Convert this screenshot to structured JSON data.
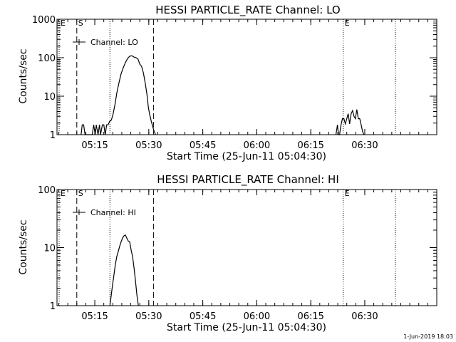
{
  "chart_data": [
    {
      "type": "line",
      "title": "HESSI PARTICLE_RATE Channel: LO",
      "ylabel": "Counts/sec",
      "xlabel": "Start Time (25-Jun-11 05:04:30)",
      "yscale": "log",
      "ylim": [
        1,
        1000
      ],
      "yticks": [
        1,
        10,
        100,
        1000
      ],
      "ytick_labels": [
        "1",
        "10",
        "100",
        "1000"
      ],
      "xlim_min": [
        0,
        105.5
      ],
      "xtick_labels": [
        "05:15",
        "05:30",
        "05:45",
        "06:00",
        "06:15",
        "06:30"
      ],
      "xtick_min": [
        10.5,
        25.5,
        40.5,
        55.5,
        70.5,
        85.5
      ],
      "legend": "Channel: LO",
      "markers": [
        {
          "label": "E",
          "x_min": 0.6,
          "style": "dotted"
        },
        {
          "label": "S",
          "x_min": 5.5,
          "style": "dashed"
        },
        {
          "label": "",
          "x_min": 14.7,
          "style": "dotted"
        },
        {
          "label": "",
          "x_min": 26.8,
          "style": "dashed"
        },
        {
          "label": "E",
          "x_min": 79.5,
          "style": "dotted"
        },
        {
          "label": "",
          "x_min": 94.0,
          "style": "dotted"
        }
      ],
      "series": [
        {
          "name": "Channel: LO",
          "x_min": [
            6.7,
            7.0,
            7.4,
            7.8,
            8.1,
            9.8,
            10.2,
            10.6,
            10.9,
            11.4,
            11.8,
            12.1,
            12.6,
            13.0,
            13.4,
            13.8,
            14.2,
            14.6,
            15.1,
            15.6,
            16.1,
            16.6,
            17.2,
            17.8,
            18.4,
            19.0,
            19.6,
            20.2,
            20.8,
            21.4,
            22.0,
            22.5,
            23.0,
            23.5,
            24.0,
            24.5,
            25.0,
            25.4,
            25.8,
            26.2,
            26.6,
            27.0,
            27.4
          ],
          "y": [
            1,
            1.8,
            1.8,
            1,
            1,
            1,
            1.8,
            1,
            1.8,
            1,
            1.8,
            1,
            1.8,
            1.8,
            1,
            1.8,
            1.8,
            2.2,
            2.4,
            3.5,
            6,
            12,
            22,
            38,
            55,
            75,
            95,
            110,
            112,
            104,
            100,
            92,
            68,
            60,
            40,
            22,
            11,
            5,
            3.2,
            2.2,
            1.6,
            1.2,
            1
          ]
        },
        {
          "name": "Channel: LO",
          "x_min": [
            77.5,
            77.9,
            78.2,
            78.5,
            78.9,
            79.3,
            79.7,
            80.1,
            80.5,
            80.9,
            81.3,
            81.7,
            82.1,
            82.5,
            82.9,
            83.3,
            83.7,
            84.1,
            84.5,
            84.9,
            85.3
          ],
          "y": [
            1,
            1.8,
            1,
            1,
            1.8,
            2.6,
            2.6,
            1.9,
            2.6,
            3.5,
            1.9,
            3.5,
            4.2,
            3.0,
            2.6,
            4.5,
            2.6,
            2.6,
            1.8,
            1.2,
            1
          ]
        }
      ]
    },
    {
      "type": "line",
      "title": "HESSI PARTICLE_RATE Channel: HI",
      "ylabel": "Counts/sec",
      "xlabel": "Start Time (25-Jun-11 05:04:30)",
      "yscale": "log",
      "ylim": [
        1,
        100
      ],
      "yticks": [
        1,
        10,
        100
      ],
      "ytick_labels": [
        "1",
        "10",
        "100"
      ],
      "xlim_min": [
        0,
        105.5
      ],
      "xtick_labels": [
        "05:15",
        "05:30",
        "05:45",
        "06:00",
        "06:15",
        "06:30"
      ],
      "xtick_min": [
        10.5,
        25.5,
        40.5,
        55.5,
        70.5,
        85.5
      ],
      "legend": "Channel: HI",
      "markers": [
        {
          "label": "E",
          "x_min": 0.6,
          "style": "dotted"
        },
        {
          "label": "S",
          "x_min": 5.5,
          "style": "dashed"
        },
        {
          "label": "",
          "x_min": 14.7,
          "style": "dotted"
        },
        {
          "label": "",
          "x_min": 26.8,
          "style": "dashed"
        },
        {
          "label": "E",
          "x_min": 79.5,
          "style": "dotted"
        },
        {
          "label": "",
          "x_min": 94.0,
          "style": "dotted"
        }
      ],
      "series": [
        {
          "name": "Channel: HI",
          "x_min": [
            14.7,
            15.0,
            15.4,
            15.8,
            16.2,
            16.6,
            17.0,
            17.4,
            17.8,
            18.2,
            18.6,
            19.0,
            19.4,
            19.8,
            20.2,
            20.6,
            21.0,
            21.4,
            21.8,
            22.2,
            22.6
          ],
          "y": [
            1,
            1.4,
            2.2,
            3.3,
            5.0,
            7.0,
            8.5,
            10.5,
            12.5,
            14.5,
            16.0,
            16.5,
            14.5,
            13.0,
            12.5,
            9.0,
            7.0,
            4.5,
            2.7,
            1.5,
            1
          ]
        }
      ]
    }
  ],
  "footer": {
    "timestamp": "1-Jun-2019 18:03"
  }
}
